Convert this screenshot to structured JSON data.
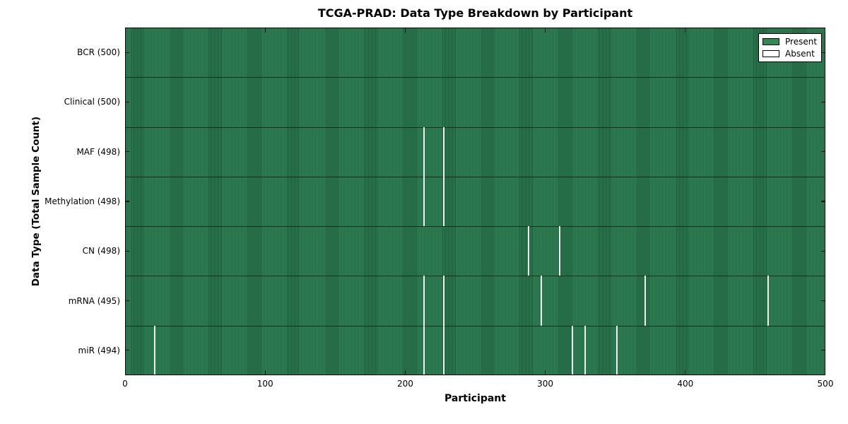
{
  "chart_data": {
    "type": "heatmap",
    "title": "TCGA-PRAD: Data Type Breakdown by Participant",
    "xlabel": "Participant",
    "ylabel": "Data Type (Total Sample Count)",
    "x_range": [
      0,
      500
    ],
    "x_ticks": [
      0,
      100,
      200,
      300,
      400,
      500
    ],
    "n_participants": 500,
    "grid": false,
    "legend_position": "upper right",
    "legend": [
      {
        "label": "Present",
        "color": "#2e8b57"
      },
      {
        "label": "Absent",
        "color": "#ffffff"
      }
    ],
    "rows": [
      {
        "data_type": "BCR",
        "tick_label": "BCR (500)",
        "total": 500,
        "absent_participants": []
      },
      {
        "data_type": "Clinical",
        "tick_label": "Clinical (500)",
        "total": 500,
        "absent_participants": []
      },
      {
        "data_type": "MAF",
        "tick_label": "MAF (498)",
        "total": 498,
        "absent_participants": [
          213,
          227
        ]
      },
      {
        "data_type": "Methylation",
        "tick_label": "Methylation (498)",
        "total": 498,
        "absent_participants": [
          213,
          227
        ]
      },
      {
        "data_type": "CN",
        "tick_label": "CN (498)",
        "total": 498,
        "absent_participants": [
          288,
          310
        ]
      },
      {
        "data_type": "mRNA",
        "tick_label": "mRNA (495)",
        "total": 495,
        "absent_participants": [
          213,
          227,
          297,
          371,
          459
        ]
      },
      {
        "data_type": "miR",
        "tick_label": "miR (494)",
        "total": 494,
        "absent_participants": [
          21,
          213,
          227,
          319,
          328,
          351
        ]
      }
    ],
    "colors": {
      "present_fill": "#2e8155",
      "present_edge": "#1e5737",
      "absent_fill": "#ededed",
      "row_separator": "#0e2f1d",
      "axis": "#000000",
      "background": "#ffffff"
    }
  }
}
